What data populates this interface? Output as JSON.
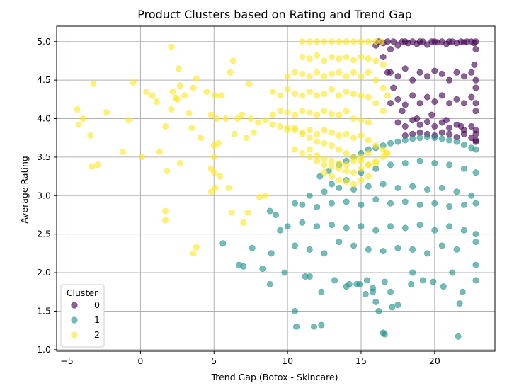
{
  "chart_data": {
    "type": "scatter",
    "title": "Product Clusters based on Rating and Trend Gap",
    "xlabel": "Trend Gap (Botox - Skincare)",
    "ylabel": "Average Rating",
    "xlim": [
      -5.7,
      24.1
    ],
    "ylim": [
      0.98,
      5.2
    ],
    "xticks": [
      -5,
      0,
      5,
      10,
      15,
      20
    ],
    "xtick_labels": [
      "−5",
      "0",
      "5",
      "10",
      "15",
      "20"
    ],
    "yticks": [
      1.0,
      1.5,
      2.0,
      2.5,
      3.0,
      3.5,
      4.0,
      4.5,
      5.0
    ],
    "ytick_labels": [
      "1.0",
      "1.5",
      "2.0",
      "2.5",
      "3.0",
      "3.5",
      "4.0",
      "4.5",
      "5.0"
    ],
    "grid": true,
    "legend": {
      "title": "Cluster",
      "placement": "lower-left"
    },
    "series": [
      {
        "name": "0",
        "color": "#440154",
        "x": [
          16.0,
          16.2,
          16.5,
          16.8,
          17.0,
          17.2,
          17.5,
          17.8,
          18.0,
          18.2,
          18.5,
          18.8,
          19.0,
          19.2,
          19.5,
          19.8,
          20.0,
          20.2,
          20.5,
          20.8,
          21.0,
          21.2,
          21.5,
          21.8,
          22.0,
          22.2,
          22.5,
          22.7,
          22.8,
          17.0,
          17.5,
          18.0,
          18.5,
          19.0,
          19.5,
          20.0,
          20.5,
          21.0,
          21.5,
          22.0,
          22.5,
          22.8,
          17.0,
          17.5,
          18.0,
          18.5,
          19.0,
          19.5,
          20.0,
          20.5,
          21.0,
          21.5,
          22.0,
          22.5,
          22.8,
          17.5,
          18.0,
          18.5,
          19.0,
          19.5,
          20.0,
          20.5,
          21.0,
          21.5,
          22.0,
          22.5,
          22.8,
          18.0,
          18.5,
          19.0,
          19.5,
          20.0,
          20.5,
          21.0,
          21.5,
          22.0,
          22.5,
          22.8,
          16.5,
          16.8,
          17.2,
          17.8,
          18.8,
          19.8,
          20.8,
          21.8,
          22.7,
          22.8,
          22.8,
          22.8,
          22.8,
          22.8
        ],
        "y": [
          4.95,
          5.0,
          4.98,
          5.0,
          4.9,
          5.0,
          4.95,
          5.0,
          5.0,
          4.98,
          5.0,
          4.97,
          5.0,
          5.0,
          4.96,
          5.0,
          5.0,
          4.99,
          5.0,
          4.97,
          5.0,
          5.0,
          4.98,
          5.0,
          4.99,
          5.0,
          5.0,
          4.98,
          5.0,
          4.6,
          4.55,
          4.65,
          4.5,
          4.6,
          4.55,
          4.62,
          4.58,
          4.5,
          4.6,
          4.55,
          4.6,
          4.5,
          4.2,
          4.25,
          4.18,
          4.3,
          4.2,
          4.28,
          4.22,
          4.3,
          4.2,
          4.25,
          4.2,
          4.28,
          4.2,
          3.95,
          3.9,
          3.98,
          3.92,
          3.96,
          3.9,
          3.95,
          3.88,
          3.92,
          3.85,
          3.9,
          3.8,
          3.78,
          3.8,
          3.82,
          3.8,
          3.78,
          3.82,
          3.8,
          3.76,
          3.8,
          3.75,
          3.7,
          4.8,
          4.6,
          4.4,
          4.1,
          4.0,
          4.05,
          3.98,
          3.9,
          4.7,
          4.4,
          4.1,
          3.85,
          3.72,
          4.9
        ]
      },
      {
        "name": "1",
        "color": "#21918c",
        "x": [
          12.2,
          12.8,
          13.5,
          14.0,
          14.5,
          15.0,
          15.5,
          16.0,
          16.5,
          17.0,
          17.5,
          18.0,
          18.5,
          19.0,
          19.5,
          20.0,
          20.5,
          21.0,
          21.5,
          22.0,
          22.5,
          22.8,
          13.0,
          14.0,
          15.0,
          16.0,
          17.0,
          18.0,
          19.0,
          20.0,
          21.0,
          22.0,
          22.8,
          11.5,
          12.5,
          13.5,
          14.5,
          15.5,
          16.5,
          17.5,
          18.5,
          19.5,
          20.5,
          21.5,
          22.5,
          10.5,
          11.0,
          12.0,
          13.0,
          14.0,
          15.0,
          16.0,
          17.0,
          18.0,
          19.0,
          20.0,
          21.0,
          22.0,
          22.8,
          9.5,
          10.0,
          11.0,
          12.0,
          13.0,
          14.0,
          15.0,
          16.0,
          17.0,
          18.0,
          19.0,
          20.0,
          21.0,
          22.0,
          22.8,
          8.8,
          9.2,
          10.5,
          11.5,
          12.5,
          13.5,
          14.5,
          15.5,
          16.5,
          17.5,
          18.5,
          19.5,
          20.5,
          21.5,
          22.8,
          5.6,
          6.7,
          7.0,
          7.6,
          8.3,
          8.9,
          9.8,
          10.5,
          11.2,
          11.8,
          12.3,
          13.2,
          14.0,
          14.7,
          15.3,
          16.0,
          16.6,
          17.0,
          17.5,
          18.4,
          19.2,
          19.9,
          20.6,
          21.2,
          21.6,
          21.9,
          22.8,
          8.8,
          10.6,
          11.5,
          12.3,
          14.2,
          15.8,
          16.5,
          18.5,
          21.7,
          22.8
        ],
        "y": [
          3.25,
          3.32,
          3.4,
          3.45,
          3.5,
          3.55,
          3.6,
          3.62,
          3.65,
          3.68,
          3.7,
          3.72,
          3.74,
          3.75,
          3.76,
          3.75,
          3.74,
          3.72,
          3.7,
          3.66,
          3.62,
          3.6,
          3.15,
          3.2,
          3.3,
          3.35,
          3.4,
          3.42,
          3.45,
          3.42,
          3.4,
          3.35,
          3.3,
          3.0,
          3.05,
          3.1,
          3.08,
          3.12,
          3.15,
          3.1,
          3.12,
          3.08,
          3.1,
          3.05,
          3.0,
          2.9,
          2.88,
          2.85,
          2.9,
          2.92,
          2.88,
          2.95,
          2.9,
          2.92,
          2.88,
          2.9,
          2.86,
          2.88,
          2.9,
          2.55,
          2.6,
          2.65,
          2.6,
          2.62,
          2.58,
          2.6,
          2.55,
          2.6,
          2.58,
          2.62,
          2.55,
          2.6,
          2.55,
          2.5,
          2.8,
          2.75,
          2.35,
          2.3,
          2.25,
          2.4,
          2.35,
          2.3,
          2.28,
          2.32,
          2.3,
          2.25,
          2.35,
          2.3,
          2.4,
          2.38,
          2.1,
          2.08,
          2.32,
          2.05,
          2.25,
          2.0,
          1.5,
          1.95,
          1.3,
          1.32,
          1.9,
          1.82,
          1.85,
          1.72,
          1.62,
          1.88,
          1.75,
          1.58,
          1.85,
          1.9,
          1.88,
          1.82,
          2.0,
          1.17,
          1.75,
          1.9,
          1.85,
          1.3,
          1.95,
          1.75,
          1.85,
          1.8,
          1.22,
          2.0,
          1.6,
          2.1
        ],
        "extra_x": [
          16.6,
          17.1,
          15.8,
          16.2,
          14.9,
          15.4
        ],
        "extra_y": [
          1.2,
          1.55,
          1.75,
          1.5,
          1.85,
          1.9
        ]
      },
      {
        "name": "2",
        "color": "#fde725",
        "x": [
          11.0,
          11.5,
          12.0,
          12.5,
          13.0,
          13.5,
          14.0,
          14.5,
          15.0,
          15.5,
          16.0,
          16.4,
          11.0,
          11.5,
          12.0,
          12.5,
          13.0,
          13.5,
          14.0,
          14.5,
          15.0,
          15.5,
          16.0,
          16.5,
          10.0,
          10.5,
          11.0,
          11.5,
          12.0,
          12.5,
          13.0,
          13.5,
          14.0,
          14.5,
          15.0,
          15.5,
          16.0,
          16.5,
          16.8,
          9.0,
          9.5,
          10.0,
          10.5,
          11.0,
          11.5,
          12.0,
          12.5,
          13.0,
          13.5,
          14.0,
          14.5,
          15.0,
          15.5,
          16.0,
          16.5,
          9.0,
          9.5,
          10.0,
          10.5,
          11.0,
          11.5,
          12.0,
          12.5,
          13.0,
          13.5,
          14.0,
          14.5,
          15.0,
          15.5,
          10.0,
          10.5,
          11.0,
          11.5,
          12.0,
          12.5,
          13.0,
          13.5,
          14.0,
          14.5,
          15.0,
          15.5,
          16.0,
          16.5,
          16.8,
          7.5,
          8.0,
          8.5,
          9.0,
          9.5,
          10.0,
          10.5,
          11.0,
          11.5,
          12.0,
          12.5,
          13.0,
          13.5,
          14.0,
          14.5,
          15.0,
          15.5,
          16.0,
          16.5,
          16.7,
          10.5,
          11.0,
          11.5,
          12.0,
          12.5,
          13.0,
          13.5,
          14.0,
          14.5,
          15.0,
          15.5,
          16.0,
          11.5,
          12.0,
          12.5,
          13.0,
          13.5,
          14.0,
          14.5,
          15.0,
          15.5,
          12.5,
          13.0,
          13.5,
          14.0,
          14.5,
          15.0,
          15.5,
          -4.3,
          -4.2,
          -3.9,
          -3.4,
          -3.3,
          -3.2,
          -2.9,
          -2.3,
          -1.2,
          -0.8,
          -0.5,
          0.1,
          0.4,
          0.8,
          1.1,
          1.3,
          1.7,
          1.8,
          2.1,
          2.2,
          2.4,
          2.6,
          2.7,
          3.0,
          3.3,
          3.5,
          3.6,
          3.8,
          4.1,
          4.5,
          4.8,
          5.0,
          5.1,
          5.2,
          5.3,
          5.5,
          5.8,
          6.1,
          6.3,
          6.4,
          6.6,
          6.9,
          7.2,
          7.4,
          7.7,
          5.0,
          4.8,
          5.1,
          5.0,
          5.4,
          6.0,
          6.2,
          7.0,
          7.3,
          8.1,
          8.5,
          3.6,
          3.8,
          1.7,
          1.7,
          4.8,
          2.1,
          2.5,
          2.7
        ],
        "y": [
          5.0,
          5.0,
          5.0,
          5.0,
          5.0,
          5.0,
          5.0,
          5.0,
          5.0,
          5.0,
          5.0,
          5.0,
          4.8,
          4.78,
          4.82,
          4.75,
          4.8,
          4.78,
          4.8,
          4.76,
          4.8,
          4.78,
          4.75,
          4.7,
          4.55,
          4.6,
          4.58,
          4.55,
          4.6,
          4.55,
          4.58,
          4.6,
          4.55,
          4.6,
          4.55,
          4.6,
          4.5,
          4.4,
          4.3,
          4.35,
          4.3,
          4.38,
          4.32,
          4.3,
          4.35,
          4.3,
          4.32,
          4.38,
          4.3,
          4.35,
          4.32,
          4.3,
          4.28,
          4.2,
          4.1,
          4.05,
          4.1,
          4.08,
          4.05,
          4.1,
          4.08,
          4.05,
          4.1,
          4.06,
          4.05,
          4.1,
          4.0,
          3.98,
          3.95,
          3.85,
          3.88,
          3.82,
          3.85,
          3.8,
          3.85,
          3.82,
          3.78,
          3.8,
          3.75,
          3.78,
          3.72,
          3.65,
          3.6,
          3.55,
          4.0,
          3.95,
          3.98,
          3.92,
          3.9,
          3.88,
          3.85,
          3.8,
          3.75,
          3.7,
          3.68,
          3.65,
          3.6,
          3.55,
          3.5,
          3.45,
          3.4,
          3.42,
          3.5,
          3.55,
          3.6,
          3.55,
          3.5,
          3.45,
          3.4,
          3.38,
          3.35,
          3.32,
          3.3,
          3.35,
          3.4,
          3.45,
          3.6,
          3.52,
          3.48,
          3.45,
          3.42,
          3.4,
          3.45,
          3.5,
          3.55,
          3.3,
          3.25,
          3.2,
          3.18,
          3.15,
          3.2,
          3.25,
          4.12,
          3.92,
          4.0,
          3.78,
          3.38,
          4.45,
          3.4,
          4.08,
          3.57,
          3.98,
          4.47,
          3.5,
          4.35,
          4.3,
          4.22,
          3.57,
          3.9,
          3.32,
          4.12,
          4.35,
          4.27,
          4.65,
          4.43,
          4.3,
          4.07,
          3.88,
          4.4,
          4.52,
          3.75,
          4.35,
          4.05,
          3.65,
          4.3,
          4.0,
          3.68,
          4.3,
          4.0,
          4.6,
          4.75,
          3.8,
          4.0,
          4.05,
          3.75,
          4.45,
          3.82,
          3.3,
          3.35,
          3.1,
          3.5,
          3.25,
          3.1,
          2.78,
          2.65,
          2.78,
          2.98,
          3.0,
          2.25,
          2.33,
          2.8,
          2.68,
          3.05,
          4.93,
          4.25,
          3.42
        ]
      }
    ]
  }
}
